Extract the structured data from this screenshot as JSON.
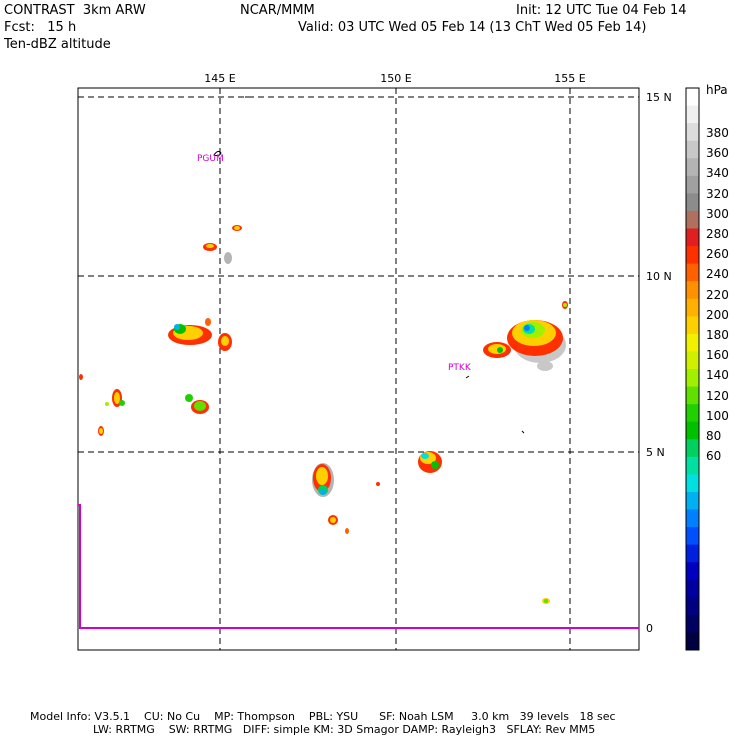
{
  "header": {
    "title_left": "CONTRAST  3km ARW",
    "title_center": "NCAR/MMM",
    "init": "Init: 12 UTC Tue 04 Feb 14",
    "fcst": "Fcst:   15 h",
    "valid": "Valid: 03 UTC Wed 05 Feb 14 (13 ChT Wed 05 Feb 14)",
    "field": "Ten-dBZ altitude"
  },
  "map": {
    "lon_labels": [
      "145 E",
      "150 E",
      "155 E"
    ],
    "lat_labels": [
      "15 N",
      "10 N",
      "5 N",
      "0"
    ],
    "stations": [
      "PGUM",
      "PTKK"
    ]
  },
  "colorbar": {
    "unit": "hPa",
    "labels": [
      "380",
      "360",
      "340",
      "320",
      "300",
      "280",
      "260",
      "240",
      "220",
      "200",
      "180",
      "160",
      "140",
      "120",
      "100",
      "80",
      "60"
    ],
    "colors": [
      "#ffffff",
      "#f0f0f0",
      "#dcdcdc",
      "#c8c8c8",
      "#b4b4b4",
      "#a0a0a0",
      "#8c8c8c",
      "#b07060",
      "#e02020",
      "#ff3000",
      "#ff6000",
      "#ff9000",
      "#ffb000",
      "#ffd000",
      "#f0f000",
      "#d0f000",
      "#a0f000",
      "#60e000",
      "#20d000",
      "#00c000",
      "#00d060",
      "#00e0a0",
      "#00e0e0",
      "#00b0f0",
      "#0080ff",
      "#0050ff",
      "#0020e0",
      "#0000c0",
      "#0000a0",
      "#000080",
      "#000060",
      "#000040"
    ]
  },
  "footer": {
    "line1": "Model Info: V3.5.1    CU: No Cu    MP: Thompson    PBL: YSU      SF: Noah LSM     3.0 km   39 levels   18 sec",
    "line2": "                  LW: RRTMG    SW: RRTMG   DIFF: simple KM: 3D Smagor DAMP: Rayleigh3   SFLAY: Rev MM5"
  }
}
